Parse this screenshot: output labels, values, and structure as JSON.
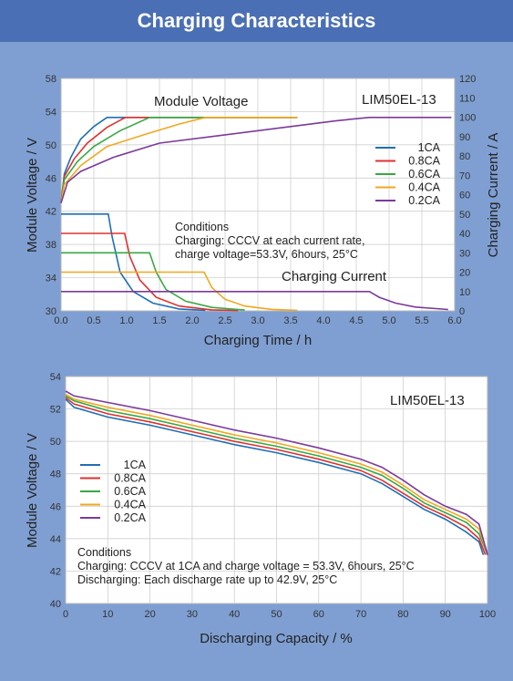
{
  "page": {
    "title": "Charging Characteristics"
  },
  "chart_data": [
    {
      "type": "line",
      "model": "LIM50EL-13",
      "annotations": {
        "voltage_label": "Module Voltage",
        "current_label": "Charging Current",
        "conditions_title": "Conditions",
        "conditions_line1": "Charging: CCCV at each current rate,",
        "conditions_line2": "charge voltage=53.3V, 6hours, 25°C"
      },
      "xlabel": "Charging Time / h",
      "ylabel_left": "Module Voltage / V",
      "ylabel_right": "Charging Current / A",
      "xlim": [
        0,
        6
      ],
      "ylim_left": [
        30,
        58
      ],
      "ylim_right": [
        0,
        120
      ],
      "x_ticks": [
        "0.0",
        "0.5",
        "1.0",
        "1.5",
        "2.0",
        "2.5",
        "3.0",
        "3.5",
        "4.0",
        "4.5",
        "5.0",
        "5.5",
        "6.0"
      ],
      "yleft_ticks": [
        "30",
        "34",
        "38",
        "42",
        "46",
        "50",
        "54",
        "58"
      ],
      "yright_ticks": [
        "0",
        "10",
        "20",
        "30",
        "40",
        "50",
        "60",
        "70",
        "80",
        "90",
        "100",
        "110",
        "120"
      ],
      "grid": true,
      "legend_position": "center-right",
      "series": [
        {
          "name": "1CA",
          "color": "#1f6fb5",
          "voltage": [
            [
              0,
              43
            ],
            [
              0.05,
              46.5
            ],
            [
              0.15,
              48.5
            ],
            [
              0.3,
              50.7
            ],
            [
              0.5,
              52.2
            ],
            [
              0.7,
              53.3
            ],
            [
              3.6,
              53.3
            ]
          ],
          "current": [
            [
              0,
              50
            ],
            [
              0.72,
              50
            ],
            [
              0.78,
              38
            ],
            [
              0.9,
              20
            ],
            [
              1.1,
              10
            ],
            [
              1.4,
              4
            ],
            [
              1.8,
              1
            ],
            [
              2.2,
              0.3
            ]
          ]
        },
        {
          "name": "0.8CA",
          "color": "#e03030",
          "voltage": [
            [
              0,
              43
            ],
            [
              0.05,
              46.2
            ],
            [
              0.2,
              48.3
            ],
            [
              0.4,
              50.2
            ],
            [
              0.7,
              52.1
            ],
            [
              0.98,
              53.3
            ],
            [
              3.6,
              53.3
            ]
          ],
          "current": [
            [
              0,
              40
            ],
            [
              0.97,
              40
            ],
            [
              1.05,
              28
            ],
            [
              1.2,
              16
            ],
            [
              1.45,
              7
            ],
            [
              1.8,
              2.5
            ],
            [
              2.3,
              0.5
            ],
            [
              2.7,
              0.2
            ]
          ]
        },
        {
          "name": "0.6CA",
          "color": "#3aa843",
          "voltage": [
            [
              0,
              43
            ],
            [
              0.05,
              45.8
            ],
            [
              0.25,
              48
            ],
            [
              0.5,
              49.8
            ],
            [
              0.9,
              51.7
            ],
            [
              1.35,
              53.3
            ],
            [
              3.6,
              53.3
            ]
          ],
          "current": [
            [
              0,
              30
            ],
            [
              1.35,
              30
            ],
            [
              1.45,
              20
            ],
            [
              1.6,
              11
            ],
            [
              1.9,
              5
            ],
            [
              2.3,
              1.8
            ],
            [
              2.8,
              0.4
            ]
          ]
        },
        {
          "name": "0.4CA",
          "color": "#f0a820",
          "voltage": [
            [
              0,
              43
            ],
            [
              0.05,
              45.2
            ],
            [
              0.3,
              47.5
            ],
            [
              0.7,
              49.8
            ],
            [
              1.3,
              51.3
            ],
            [
              1.8,
              52.5
            ],
            [
              2.2,
              53.3
            ],
            [
              3.6,
              53.3
            ]
          ],
          "current": [
            [
              0,
              20
            ],
            [
              2.18,
              20
            ],
            [
              2.3,
              12
            ],
            [
              2.5,
              6
            ],
            [
              2.8,
              2.5
            ],
            [
              3.2,
              0.8
            ],
            [
              3.6,
              0.3
            ]
          ]
        },
        {
          "name": "0.2CA",
          "color": "#7b3a9a",
          "voltage": [
            [
              0,
              43
            ],
            [
              0.1,
              45.5
            ],
            [
              0.3,
              46.8
            ],
            [
              0.8,
              48.5
            ],
            [
              1.5,
              50.2
            ],
            [
              2.5,
              51.2
            ],
            [
              3.5,
              52.2
            ],
            [
              4.2,
              52.9
            ],
            [
              4.7,
              53.3
            ],
            [
              5.95,
              53.3
            ]
          ],
          "current": [
            [
              0,
              10
            ],
            [
              4.7,
              10
            ],
            [
              4.85,
              7
            ],
            [
              5.1,
              4
            ],
            [
              5.4,
              2
            ],
            [
              5.9,
              0.7
            ]
          ]
        }
      ]
    },
    {
      "type": "line",
      "model": "LIM50EL-13",
      "annotations": {
        "conditions_title": "Conditions",
        "conditions_line1": "Charging: CCCV at 1CA and charge voltage = 53.3V, 6hours, 25°C",
        "conditions_line2": "Discharging: Each discharge rate up to 42.9V, 25°C"
      },
      "xlabel": "Discharging Capacity / %",
      "ylabel": "Module Voltage / V",
      "xlim": [
        0,
        100
      ],
      "ylim": [
        40,
        54
      ],
      "x_ticks": [
        "0",
        "10",
        "20",
        "30",
        "40",
        "50",
        "60",
        "70",
        "80",
        "90",
        "100"
      ],
      "y_ticks": [
        "40",
        "42",
        "44",
        "46",
        "48",
        "50",
        "52",
        "54"
      ],
      "grid": true,
      "legend_position": "left",
      "series": [
        {
          "name": "1CA",
          "color": "#1f6fb5",
          "points": [
            [
              0,
              52.6
            ],
            [
              2,
              52.1
            ],
            [
              10,
              51.5
            ],
            [
              20,
              51.0
            ],
            [
              30,
              50.4
            ],
            [
              40,
              49.8
            ],
            [
              50,
              49.3
            ],
            [
              60,
              48.7
            ],
            [
              70,
              48.0
            ],
            [
              75,
              47.4
            ],
            [
              80,
              46.6
            ],
            [
              85,
              45.8
            ],
            [
              90,
              45.2
            ],
            [
              95,
              44.4
            ],
            [
              98,
              43.8
            ],
            [
              99,
              43.0
            ]
          ]
        },
        {
          "name": "0.8CA",
          "color": "#e03030",
          "points": [
            [
              0,
              52.7
            ],
            [
              2,
              52.3
            ],
            [
              10,
              51.7
            ],
            [
              20,
              51.2
            ],
            [
              30,
              50.6
            ],
            [
              40,
              50.0
            ],
            [
              50,
              49.5
            ],
            [
              60,
              48.9
            ],
            [
              70,
              48.2
            ],
            [
              75,
              47.6
            ],
            [
              80,
              46.8
            ],
            [
              85,
              46.0
            ],
            [
              90,
              45.4
            ],
            [
              95,
              44.7
            ],
            [
              98,
              44.0
            ],
            [
              99.5,
              43.0
            ]
          ]
        },
        {
          "name": "0.6CA",
          "color": "#3aa843",
          "points": [
            [
              0,
              52.8
            ],
            [
              2,
              52.5
            ],
            [
              10,
              51.9
            ],
            [
              20,
              51.4
            ],
            [
              30,
              50.8
            ],
            [
              40,
              50.2
            ],
            [
              50,
              49.7
            ],
            [
              60,
              49.1
            ],
            [
              70,
              48.4
            ],
            [
              75,
              47.9
            ],
            [
              80,
              47.1
            ],
            [
              85,
              46.2
            ],
            [
              90,
              45.6
            ],
            [
              95,
              45.0
            ],
            [
              98,
              44.3
            ],
            [
              100,
              43.0
            ]
          ]
        },
        {
          "name": "0.4CA",
          "color": "#f0a820",
          "points": [
            [
              0,
              52.9
            ],
            [
              2,
              52.6
            ],
            [
              10,
              52.1
            ],
            [
              20,
              51.6
            ],
            [
              30,
              51.0
            ],
            [
              40,
              50.4
            ],
            [
              50,
              49.9
            ],
            [
              60,
              49.3
            ],
            [
              70,
              48.6
            ],
            [
              75,
              48.1
            ],
            [
              80,
              47.3
            ],
            [
              85,
              46.4
            ],
            [
              90,
              45.8
            ],
            [
              95,
              45.2
            ],
            [
              98,
              44.6
            ],
            [
              100,
              43.0
            ]
          ]
        },
        {
          "name": "0.2CA",
          "color": "#7b3a9a",
          "points": [
            [
              0,
              53.1
            ],
            [
              2,
              52.8
            ],
            [
              10,
              52.4
            ],
            [
              20,
              51.9
            ],
            [
              30,
              51.3
            ],
            [
              40,
              50.7
            ],
            [
              50,
              50.2
            ],
            [
              60,
              49.6
            ],
            [
              70,
              48.9
            ],
            [
              75,
              48.4
            ],
            [
              80,
              47.6
            ],
            [
              85,
              46.7
            ],
            [
              90,
              46.0
            ],
            [
              95,
              45.5
            ],
            [
              98,
              44.9
            ],
            [
              100,
              43.0
            ]
          ]
        }
      ]
    }
  ]
}
